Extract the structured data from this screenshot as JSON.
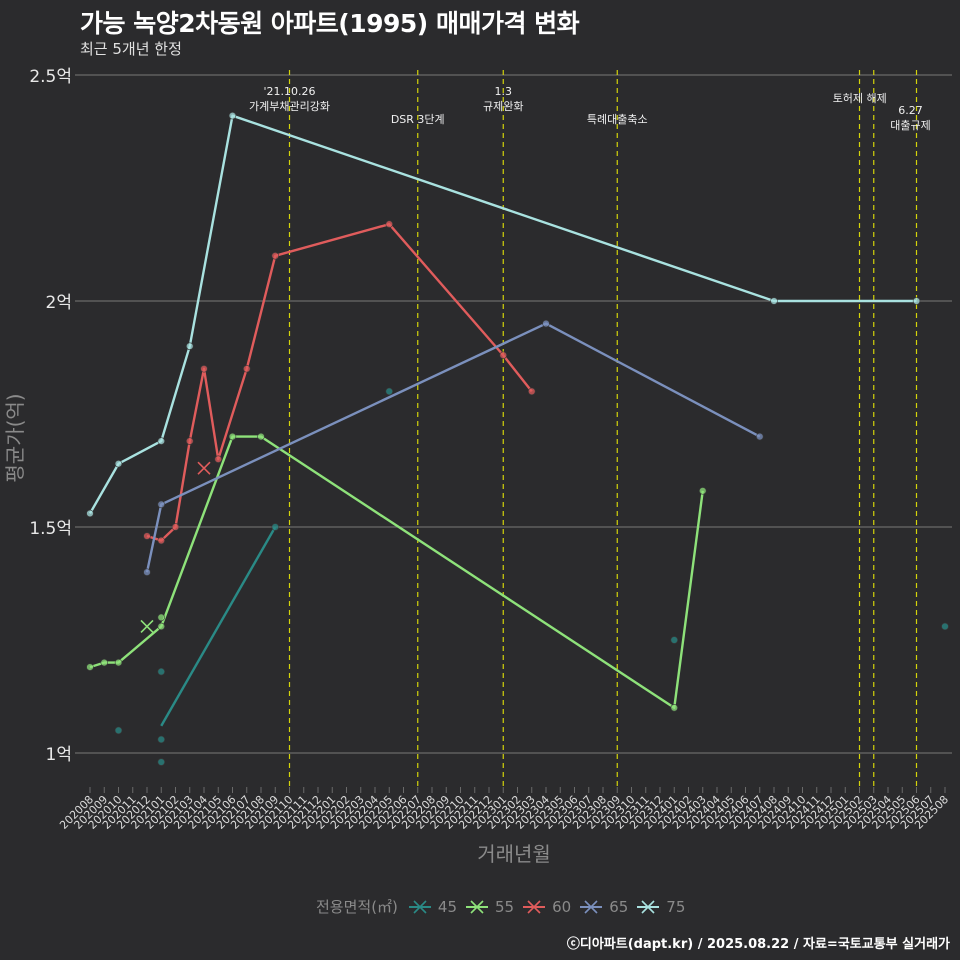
{
  "chart_data": {
    "type": "line",
    "title": "가능 녹양2차동원 아파트(1995) 매매가격 변화",
    "subtitle": "최근 5개년 한정",
    "xlabel": "거래년월",
    "ylabel": "평균가(억)",
    "ylim": [
      0.9,
      2.55
    ],
    "yticks": [
      {
        "value": 1.0,
        "label": "1억"
      },
      {
        "value": 1.5,
        "label": "1.5억"
      },
      {
        "value": 2.0,
        "label": "2억"
      },
      {
        "value": 2.5,
        "label": "2.5억"
      }
    ],
    "x_categories": [
      "202008",
      "202009",
      "202010",
      "202011",
      "202012",
      "202101",
      "202102",
      "202103",
      "202104",
      "202105",
      "202106",
      "202107",
      "202108",
      "202109",
      "202110",
      "202111",
      "202112",
      "202201",
      "202202",
      "202203",
      "202204",
      "202205",
      "202206",
      "202207",
      "202208",
      "202209",
      "202210",
      "202211",
      "202212",
      "202301",
      "202302",
      "202303",
      "202304",
      "202305",
      "202306",
      "202307",
      "202308",
      "202309",
      "202310",
      "202311",
      "202312",
      "202401",
      "202402",
      "202403",
      "202404",
      "202405",
      "202406",
      "202407",
      "202408",
      "202409",
      "202410",
      "202411",
      "202412",
      "202501",
      "202502",
      "202503",
      "202504",
      "202505",
      "202506",
      "202507",
      "202508"
    ],
    "x_tick_labels": [
      "202008",
      "202009",
      "202010",
      "202011",
      "202012",
      "202101",
      "202102",
      "202103",
      "202104",
      "202105",
      "202106",
      "202107",
      "202108",
      "202109",
      "202110",
      "202111",
      "202112",
      "202201",
      "202202",
      "202203",
      "202204",
      "202205",
      "202206",
      "202207",
      "202208",
      "202209",
      "202210",
      "202211",
      "202212",
      "202301",
      "202302",
      "202303",
      "202304",
      "202305",
      "202306",
      "202307",
      "202308",
      "202309",
      "202310",
      "202311",
      "202312",
      "202401",
      "202402",
      "202403",
      "202404",
      "202405",
      "202406",
      "202407",
      "202408",
      "202409",
      "202410",
      "202411",
      "202412",
      "202501",
      "202502",
      "202503",
      "202504",
      "202505",
      "202506",
      "202507",
      "202508"
    ],
    "legend_title": "전용면적(㎡)",
    "legend_position": "bottom",
    "grid": true,
    "series": [
      {
        "name": "45",
        "color": "#2a8a86",
        "line": [
          [
            "202101",
            1.06
          ],
          [
            "202109",
            1.5
          ]
        ],
        "points": [
          [
            "202010",
            1.05
          ],
          [
            "202101",
            1.18
          ],
          [
            "202101",
            1.03
          ],
          [
            "202101",
            0.98
          ],
          [
            "202109",
            1.5
          ],
          [
            "202205",
            1.8
          ],
          [
            "202401",
            1.25
          ],
          [
            "202508",
            1.28
          ]
        ],
        "crosses": []
      },
      {
        "name": "55",
        "color": "#8ee27a",
        "line": [
          [
            "202008",
            1.19
          ],
          [
            "202009",
            1.2
          ],
          [
            "202010",
            1.2
          ],
          [
            "202101",
            1.28
          ],
          [
            "202106",
            1.7
          ],
          [
            "202108",
            1.7
          ],
          [
            "202401",
            1.1
          ],
          [
            "202403",
            1.58
          ]
        ],
        "points": [
          [
            "202008",
            1.19
          ],
          [
            "202009",
            1.2
          ],
          [
            "202010",
            1.2
          ],
          [
            "202101",
            1.28
          ],
          [
            "202101",
            1.3
          ],
          [
            "202106",
            1.7
          ],
          [
            "202108",
            1.7
          ],
          [
            "202401",
            1.1
          ],
          [
            "202403",
            1.58
          ]
        ],
        "crosses": [
          [
            "202012",
            1.28
          ]
        ]
      },
      {
        "name": "60",
        "color": "#e05c5c",
        "line": [
          [
            "202012",
            1.48
          ],
          [
            "202101",
            1.47
          ],
          [
            "202102",
            1.5
          ],
          [
            "202103",
            1.69
          ],
          [
            "202104",
            1.85
          ],
          [
            "202105",
            1.65
          ],
          [
            "202107",
            1.85
          ],
          [
            "202109",
            2.1
          ],
          [
            "202205",
            2.17
          ],
          [
            "202301",
            1.88
          ],
          [
            "202303",
            1.8
          ]
        ],
        "points": [
          [
            "202012",
            1.48
          ],
          [
            "202101",
            1.47
          ],
          [
            "202102",
            1.5
          ],
          [
            "202103",
            1.69
          ],
          [
            "202104",
            1.85
          ],
          [
            "202105",
            1.65
          ],
          [
            "202107",
            1.85
          ],
          [
            "202109",
            2.1
          ],
          [
            "202205",
            2.17
          ],
          [
            "202301",
            1.88
          ],
          [
            "202303",
            1.8
          ]
        ],
        "crosses": [
          [
            "202104",
            1.63
          ]
        ]
      },
      {
        "name": "65",
        "color": "#7b90bd",
        "line": [
          [
            "202012",
            1.4
          ],
          [
            "202101",
            1.55
          ],
          [
            "202304",
            1.95
          ],
          [
            "202407",
            1.7
          ]
        ],
        "points": [
          [
            "202012",
            1.4
          ],
          [
            "202101",
            1.55
          ],
          [
            "202304",
            1.95
          ],
          [
            "202407",
            1.7
          ]
        ],
        "crosses": []
      },
      {
        "name": "75",
        "color": "#a9e2e0",
        "line": [
          [
            "202008",
            1.53
          ],
          [
            "202010",
            1.64
          ],
          [
            "202101",
            1.69
          ],
          [
            "202103",
            1.9
          ],
          [
            "202106",
            2.41
          ],
          [
            "202408",
            2.0
          ],
          [
            "202506",
            2.0
          ]
        ],
        "points": [
          [
            "202008",
            1.53
          ],
          [
            "202010",
            1.64
          ],
          [
            "202101",
            1.69
          ],
          [
            "202103",
            1.9
          ],
          [
            "202106",
            2.41
          ],
          [
            "202408",
            2.0
          ],
          [
            "202506",
            2.0
          ]
        ],
        "crosses": []
      }
    ],
    "annotations": [
      {
        "x": "202110",
        "lines": [
          "'21.10.26",
          "가계부채관리강화"
        ],
        "row": 0
      },
      {
        "x": "202207",
        "lines": [
          "DSR 3단계"
        ],
        "row": 1
      },
      {
        "x": "202301",
        "lines": [
          "1.3",
          "규제완화"
        ],
        "row": 0
      },
      {
        "x": "202309",
        "lines": [
          "특례대출축소"
        ],
        "row": 1
      },
      {
        "x": "202502",
        "lines": [],
        "row": 0
      },
      {
        "x": "202503",
        "lines": [
          "토허제 해제"
        ],
        "row": 2
      },
      {
        "x": "202506",
        "lines": [
          "6.27",
          "대출규제"
        ],
        "row": 3
      }
    ],
    "annotation_line_color": "#d4d40a"
  },
  "caption": "ⓒ디아파트(dapt.kr) / 2025.08.22 / 자료=국토교통부 실거래가"
}
